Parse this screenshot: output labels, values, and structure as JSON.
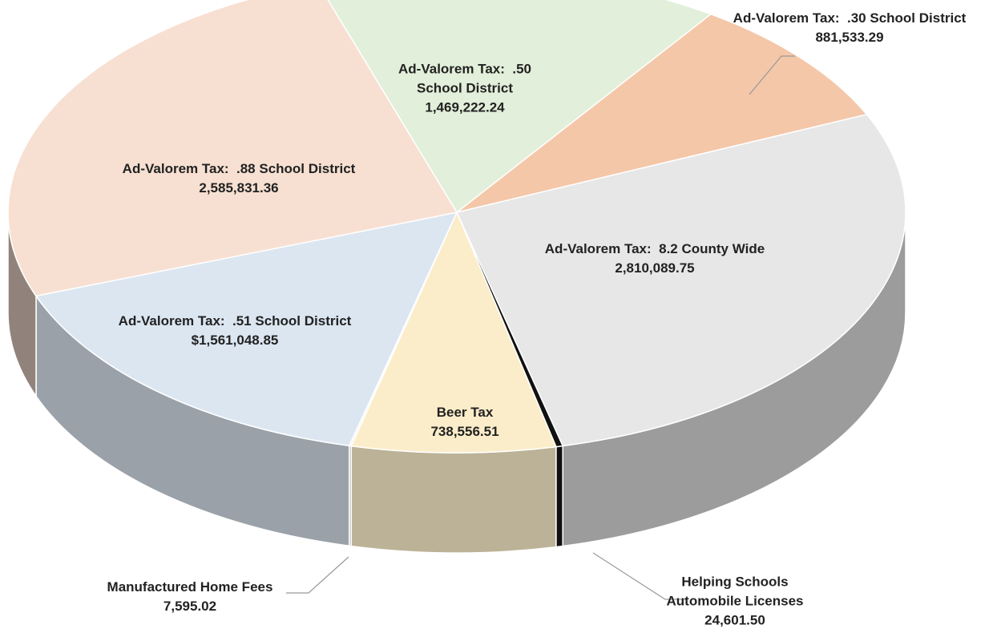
{
  "chart_data": {
    "type": "pie3d",
    "categories": [
      "Ad-Valorem Tax:  .50 School District",
      "Ad-Valorem Tax:  .30 School District",
      "Ad-Valorem Tax:  8.2 County Wide",
      "Helping Schools Automobile Licenses",
      "Beer Tax",
      "Manufactured Home Fees",
      "Ad-Valorem Tax:  .51 School District",
      "Ad-Valorem Tax:  .88 School District"
    ],
    "values": [
      1469222.24,
      881533.29,
      2810089.75,
      24601.5,
      738556.51,
      7595.02,
      1561048.85,
      2585831.36
    ],
    "value_labels": [
      "1,469,222.24",
      "881,533.29",
      "2,810,089.75",
      "24,601.50",
      "738,556.51",
      "7,595.02",
      "$1,561,048.85",
      "2,585,831.36"
    ],
    "colors": [
      "#e2efda",
      "#f4c7a9",
      "#e7e7e7",
      "#111111",
      "#fbedc9",
      "#f2f2f2",
      "#dce6f1",
      "#f7e0d2"
    ]
  }
}
